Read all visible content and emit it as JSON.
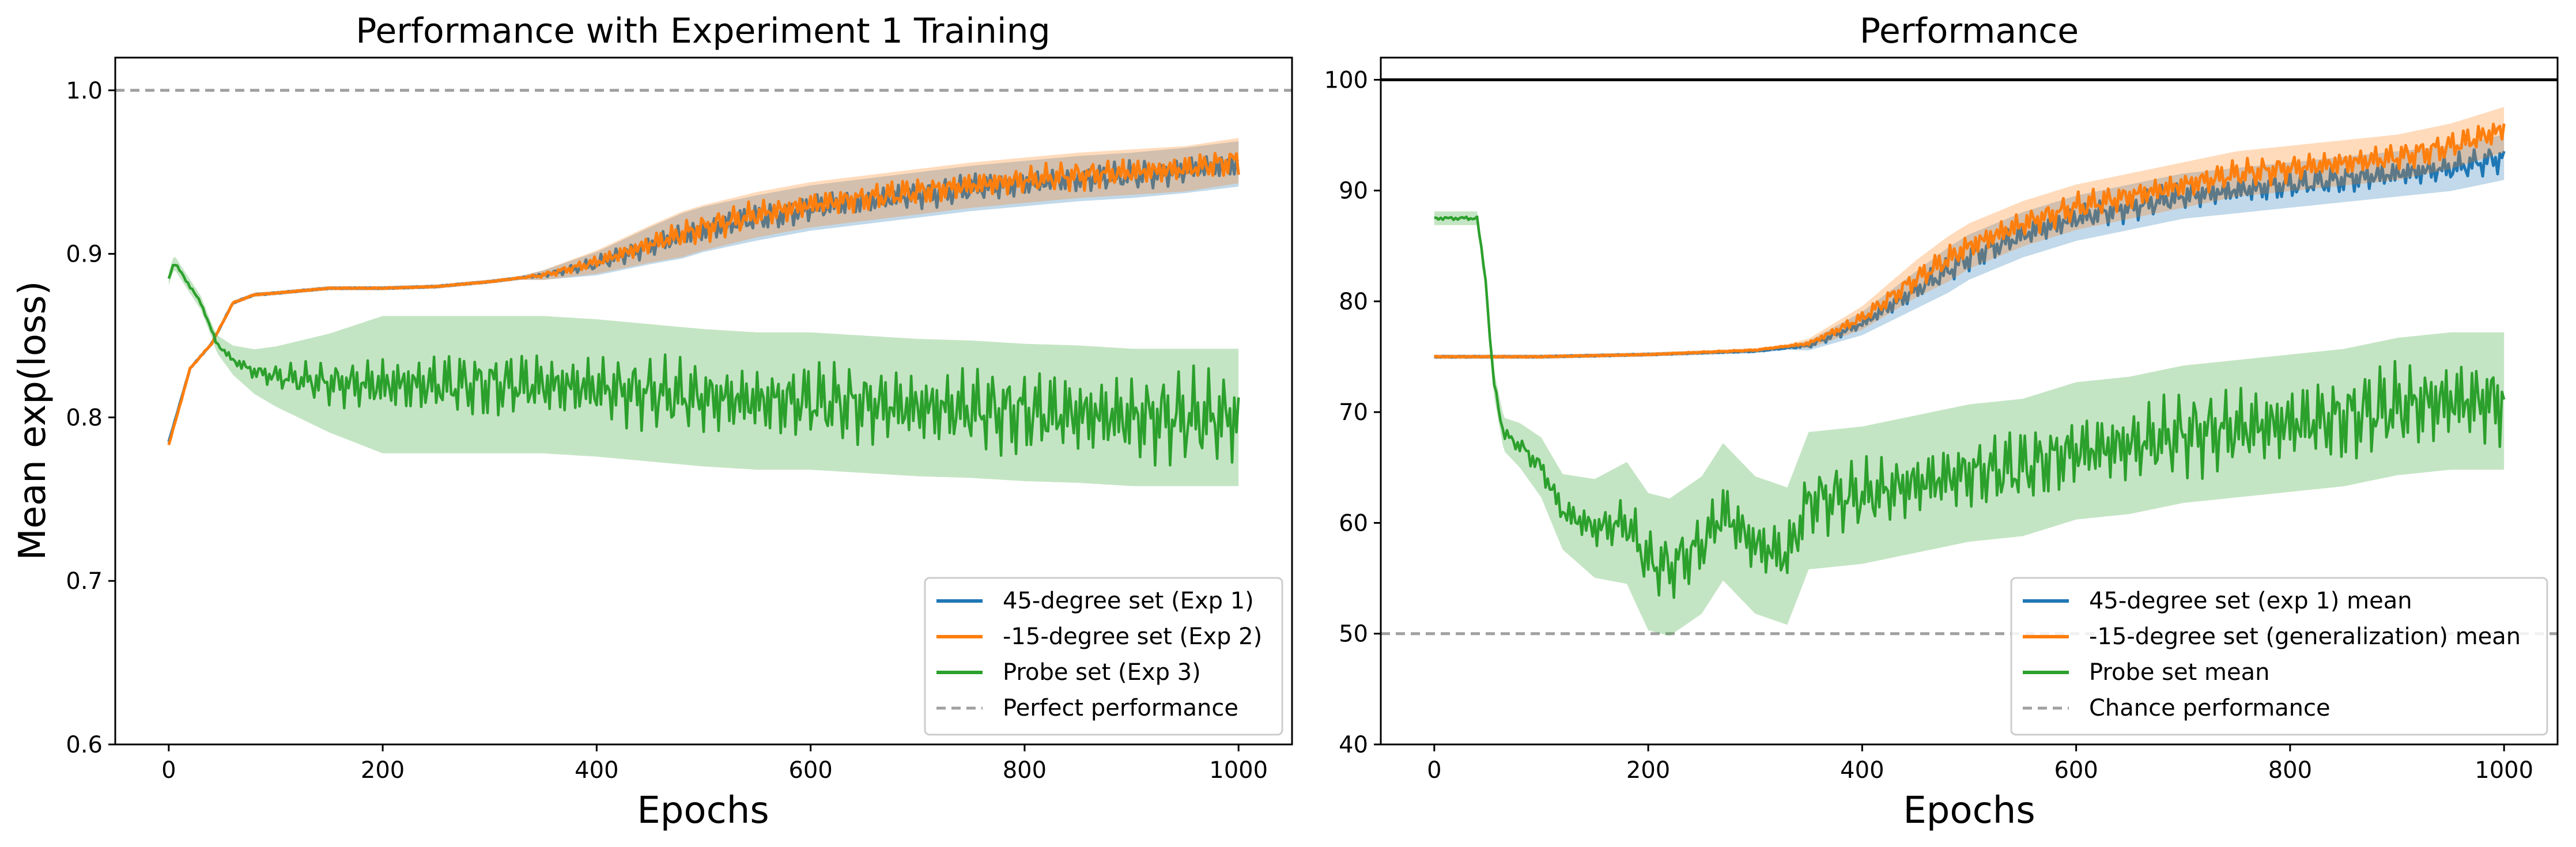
{
  "chart_data": [
    {
      "type": "line",
      "title": "Performance with Experiment 1 Training",
      "xlabel": "Epochs",
      "ylabel": "Mean exp(loss)",
      "xlim": [
        -50,
        1050
      ],
      "ylim": [
        0.6,
        1.02
      ],
      "xticks": [
        "0",
        "200",
        "400",
        "600",
        "800",
        "1000"
      ],
      "yticks": [
        "0.6",
        "0.7",
        "0.8",
        "0.9",
        "1.0"
      ],
      "grid": false,
      "legend_position": "bottom-right",
      "reference_line": {
        "name": "Perfect performance",
        "y": 1.0,
        "color": "#a0a0a0",
        "style": "dashed"
      },
      "series": [
        {
          "name": "45-degree set (Exp 1)",
          "color": "#1f77b4",
          "points": [
            [
              0,
              0.785
            ],
            [
              20,
              0.83
            ],
            [
              40,
              0.845
            ],
            [
              60,
              0.87
            ],
            [
              80,
              0.875
            ],
            [
              100,
              0.876
            ],
            [
              150,
              0.879
            ],
            [
              200,
              0.879
            ],
            [
              250,
              0.88
            ],
            [
              300,
              0.883
            ],
            [
              350,
              0.887
            ],
            [
              400,
              0.894
            ],
            [
              450,
              0.905
            ],
            [
              500,
              0.915
            ],
            [
              550,
              0.922
            ],
            [
              600,
              0.928
            ],
            [
              650,
              0.932
            ],
            [
              700,
              0.936
            ],
            [
              750,
              0.94
            ],
            [
              800,
              0.943
            ],
            [
              850,
              0.946
            ],
            [
              900,
              0.948
            ],
            [
              950,
              0.951
            ],
            [
              1000,
              0.955
            ]
          ]
        },
        {
          "name": "-15-degree set (Exp 2)",
          "color": "#ff7f0e",
          "points": [
            [
              0,
              0.783
            ],
            [
              20,
              0.83
            ],
            [
              40,
              0.845
            ],
            [
              60,
              0.87
            ],
            [
              80,
              0.875
            ],
            [
              100,
              0.876
            ],
            [
              150,
              0.879
            ],
            [
              200,
              0.879
            ],
            [
              250,
              0.88
            ],
            [
              300,
              0.883
            ],
            [
              350,
              0.887
            ],
            [
              400,
              0.895
            ],
            [
              450,
              0.906
            ],
            [
              500,
              0.916
            ],
            [
              550,
              0.924
            ],
            [
              600,
              0.93
            ],
            [
              650,
              0.934
            ],
            [
              700,
              0.938
            ],
            [
              750,
              0.942
            ],
            [
              800,
              0.945
            ],
            [
              850,
              0.948
            ],
            [
              900,
              0.95
            ],
            [
              950,
              0.952
            ],
            [
              1000,
              0.957
            ]
          ]
        },
        {
          "name": "Probe set (Exp 3)",
          "color": "#2ca02c",
          "points": [
            [
              0,
              0.885
            ],
            [
              5,
              0.895
            ],
            [
              15,
              0.885
            ],
            [
              30,
              0.87
            ],
            [
              45,
              0.845
            ],
            [
              60,
              0.835
            ],
            [
              80,
              0.828
            ],
            [
              100,
              0.825
            ],
            [
              150,
              0.821
            ],
            [
              200,
              0.82
            ],
            [
              250,
              0.82
            ],
            [
              300,
              0.82
            ],
            [
              350,
              0.82
            ],
            [
              400,
              0.818
            ],
            [
              450,
              0.815
            ],
            [
              500,
              0.812
            ],
            [
              550,
              0.81
            ],
            [
              600,
              0.81
            ],
            [
              650,
              0.808
            ],
            [
              700,
              0.806
            ],
            [
              750,
              0.805
            ],
            [
              800,
              0.803
            ],
            [
              850,
              0.802
            ],
            [
              900,
              0.8
            ],
            [
              950,
              0.8
            ],
            [
              1000,
              0.8
            ]
          ]
        }
      ]
    },
    {
      "type": "line",
      "title": "Performance",
      "xlabel": "Epochs",
      "ylabel": "",
      "xlim": [
        -50,
        1050
      ],
      "ylim": [
        40,
        102
      ],
      "xticks": [
        "0",
        "200",
        "400",
        "600",
        "800",
        "1000"
      ],
      "yticks": [
        "40",
        "50",
        "60",
        "70",
        "80",
        "90",
        "100"
      ],
      "grid": false,
      "legend_position": "bottom-right",
      "upper_line": {
        "y": 100,
        "color": "#000000",
        "style": "solid"
      },
      "reference_line": {
        "name": "Chance performance",
        "y": 50,
        "color": "#a0a0a0",
        "style": "dashed"
      },
      "series": [
        {
          "name": "45-degree set (exp 1) mean",
          "color": "#1f77b4",
          "points": [
            [
              0,
              75
            ],
            [
              100,
              75
            ],
            [
              200,
              75.2
            ],
            [
              300,
              75.5
            ],
            [
              350,
              76
            ],
            [
              400,
              78
            ],
            [
              450,
              81
            ],
            [
              500,
              84
            ],
            [
              550,
              86
            ],
            [
              600,
              87.5
            ],
            [
              650,
              88.5
            ],
            [
              700,
              89.5
            ],
            [
              750,
              90
            ],
            [
              800,
              90.5
            ],
            [
              850,
              91
            ],
            [
              900,
              91.5
            ],
            [
              950,
              92
            ],
            [
              1000,
              93
            ]
          ]
        },
        {
          "name": "-15-degree set (generalization) mean",
          "color": "#ff7f0e",
          "points": [
            [
              0,
              75
            ],
            [
              100,
              75
            ],
            [
              200,
              75.2
            ],
            [
              300,
              75.6
            ],
            [
              350,
              76.2
            ],
            [
              400,
              78.5
            ],
            [
              450,
              82
            ],
            [
              500,
              85
            ],
            [
              550,
              87
            ],
            [
              600,
              88.5
            ],
            [
              650,
              89.5
            ],
            [
              700,
              90.5
            ],
            [
              750,
              91.5
            ],
            [
              800,
              92
            ],
            [
              850,
              92.5
            ],
            [
              900,
              93
            ],
            [
              950,
              94
            ],
            [
              1000,
              95.5
            ]
          ]
        },
        {
          "name": "Probe set mean",
          "color": "#2ca02c",
          "points": [
            [
              0,
              87.5
            ],
            [
              40,
              87.5
            ],
            [
              48,
              82
            ],
            [
              55,
              73
            ],
            [
              65,
              68
            ],
            [
              80,
              67
            ],
            [
              100,
              65
            ],
            [
              120,
              61
            ],
            [
              150,
              59.5
            ],
            [
              180,
              60
            ],
            [
              200,
              56.5
            ],
            [
              220,
              56
            ],
            [
              250,
              58
            ],
            [
              270,
              61
            ],
            [
              300,
              58
            ],
            [
              330,
              57
            ],
            [
              350,
              62
            ],
            [
              400,
              62.5
            ],
            [
              450,
              63.5
            ],
            [
              500,
              64.5
            ],
            [
              550,
              65
            ],
            [
              600,
              66.5
            ],
            [
              650,
              67
            ],
            [
              700,
              68
            ],
            [
              750,
              68.5
            ],
            [
              800,
              69
            ],
            [
              850,
              69.5
            ],
            [
              900,
              70.5
            ],
            [
              950,
              71
            ],
            [
              1000,
              71
            ]
          ]
        }
      ]
    }
  ]
}
